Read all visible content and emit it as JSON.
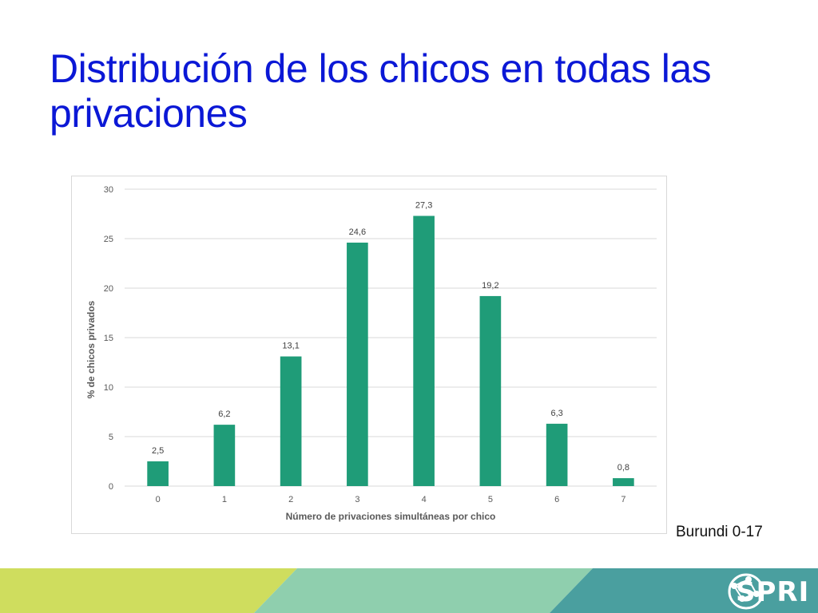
{
  "slide": {
    "title": "Distribución de los chicos en todas las privaciones",
    "caption": "Burundi 0-17",
    "logo_text": "SPRI",
    "colors": {
      "title": "#0b18d6",
      "bar": "#1f9c78",
      "footer_lime": "#cfdd5e",
      "footer_mint": "#8fcfae",
      "footer_teal": "#4a9f9f"
    }
  },
  "chart_data": {
    "type": "bar",
    "categories": [
      "0",
      "1",
      "2",
      "3",
      "4",
      "5",
      "6",
      "7"
    ],
    "values": [
      2.5,
      6.2,
      13.1,
      24.6,
      27.3,
      19.2,
      6.3,
      0.8
    ],
    "value_labels": [
      "2,5",
      "6,2",
      "13,1",
      "24,6",
      "27,3",
      "19,2",
      "6,3",
      "0,8"
    ],
    "xlabel": "Número de privaciones simultáneas por chico",
    "ylabel": "% de chicos privados",
    "ylim": [
      0,
      30
    ],
    "yticks": [
      0,
      5,
      10,
      15,
      20,
      25,
      30
    ],
    "grid": true,
    "legend": "none"
  }
}
